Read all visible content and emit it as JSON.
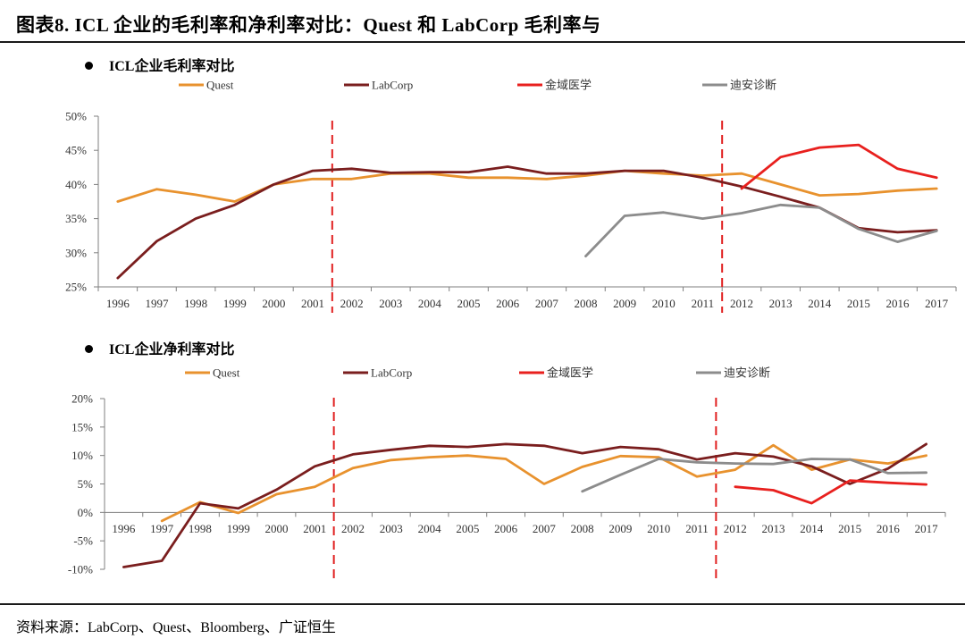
{
  "figure": {
    "title": "图表8.    ICL 企业的毛利率和净利率对比：Quest 和 LabCorp 毛利率与",
    "source": "资料来源：LabCorp、Quest、Bloomberg、广证恒生"
  },
  "colors": {
    "Quest": "#E8922E",
    "LabCorp": "#7A1E1E",
    "金域医学": "#E8201E",
    "迪安诊断": "#8C8C8C",
    "marker": "#E02020",
    "axis": "#7f7f7f"
  },
  "chart_data": [
    {
      "type": "line",
      "title": "ICL企业毛利率对比",
      "categories": [
        "1996",
        "1997",
        "1998",
        "1999",
        "2000",
        "2001",
        "2002",
        "2003",
        "2004",
        "2005",
        "2006",
        "2007",
        "2008",
        "2009",
        "2010",
        "2011",
        "2012",
        "2013",
        "2014",
        "2015",
        "2016",
        "2017"
      ],
      "yticks": [
        "25%",
        "30%",
        "35%",
        "40%",
        "45%",
        "50%"
      ],
      "ylim": [
        25,
        50
      ],
      "unit": "%",
      "legend": [
        "Quest",
        "LabCorp",
        "金域医学",
        "迪安诊断"
      ],
      "markers": [
        "2002",
        "2012"
      ],
      "series": [
        {
          "name": "Quest",
          "values": [
            37.5,
            39.3,
            38.5,
            37.5,
            40.0,
            40.8,
            40.8,
            41.6,
            41.6,
            41.0,
            41.0,
            40.8,
            41.3,
            42.0,
            41.6,
            41.3,
            41.6,
            40.0,
            38.4,
            38.6,
            39.1,
            39.4
          ]
        },
        {
          "name": "LabCorp",
          "values": [
            26.3,
            31.7,
            35.0,
            37.0,
            40.0,
            42.0,
            42.3,
            41.7,
            41.8,
            41.8,
            42.6,
            41.6,
            41.6,
            42.0,
            42.0,
            41.0,
            39.7,
            38.2,
            36.6,
            33.6,
            33.0,
            33.3
          ]
        },
        {
          "name": "金域医学",
          "values": [
            null,
            null,
            null,
            null,
            null,
            null,
            null,
            null,
            null,
            null,
            null,
            null,
            null,
            null,
            null,
            null,
            39.4,
            44.0,
            45.4,
            45.8,
            42.3,
            41.0
          ]
        },
        {
          "name": "迪安诊断",
          "values": [
            null,
            null,
            null,
            null,
            null,
            null,
            null,
            null,
            null,
            null,
            null,
            null,
            29.5,
            35.4,
            35.9,
            35.0,
            35.8,
            37.0,
            36.6,
            33.5,
            31.6,
            33.2
          ]
        }
      ]
    },
    {
      "type": "line",
      "title": "ICL企业净利率对比",
      "categories": [
        "1996",
        "1997",
        "1998",
        "1999",
        "2000",
        "2001",
        "2002",
        "2003",
        "2004",
        "2005",
        "2006",
        "2007",
        "2008",
        "2009",
        "2010",
        "2011",
        "2012",
        "2013",
        "2014",
        "2015",
        "2016",
        "2017"
      ],
      "yticks": [
        "-10%",
        "-5%",
        "0%",
        "5%",
        "10%",
        "15%",
        "20%"
      ],
      "ylim": [
        -10,
        20
      ],
      "unit": "%",
      "legend": [
        "Quest",
        "LabCorp",
        "金域医学",
        "迪安诊断"
      ],
      "markers": [
        "2002",
        "2012"
      ],
      "series": [
        {
          "name": "Quest",
          "values": [
            null,
            -1.5,
            1.8,
            -0.1,
            3.2,
            4.5,
            7.8,
            9.2,
            9.7,
            10.0,
            9.4,
            5.0,
            8.0,
            9.9,
            9.7,
            6.3,
            7.5,
            11.8,
            7.5,
            9.3,
            8.6,
            10.0
          ]
        },
        {
          "name": "LabCorp",
          "values": [
            -9.6,
            -8.5,
            1.6,
            0.7,
            4.0,
            8.1,
            10.2,
            11.0,
            11.7,
            11.5,
            12.0,
            11.7,
            10.4,
            11.5,
            11.1,
            9.3,
            10.4,
            9.8,
            8.1,
            5.0,
            7.7,
            12.0
          ]
        },
        {
          "name": "金域医学",
          "values": [
            null,
            null,
            null,
            null,
            null,
            null,
            null,
            null,
            null,
            null,
            null,
            null,
            null,
            null,
            null,
            null,
            4.5,
            3.9,
            1.6,
            5.6,
            5.2,
            4.9
          ]
        },
        {
          "name": "迪安诊断",
          "values": [
            null,
            null,
            null,
            null,
            null,
            null,
            null,
            null,
            null,
            null,
            null,
            null,
            3.7,
            6.6,
            9.4,
            8.8,
            8.6,
            8.5,
            9.4,
            9.3,
            6.9,
            7.0
          ]
        }
      ]
    }
  ]
}
